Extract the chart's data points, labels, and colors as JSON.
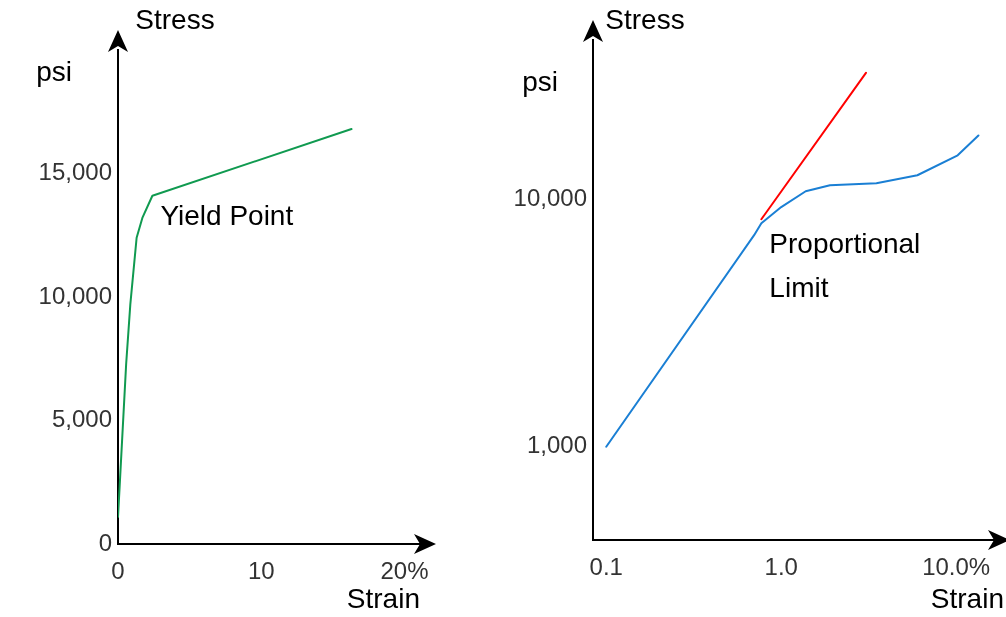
{
  "chart_data": [
    {
      "type": "line",
      "xlabel": "Strain",
      "ylabel": "Stress",
      "grid": false,
      "marker": "none",
      "line_style": "solid",
      "xlim": [
        0,
        21.5
      ],
      "xticks": [
        0,
        10,
        {
          "value": 20,
          "label": "20%"
        }
      ],
      "ylim": [
        0,
        20000
      ],
      "yticks": [
        0,
        {
          "value": 5000,
          "label": "5,000"
        },
        {
          "value": 10000,
          "label": "10,000"
        },
        {
          "value": 15000,
          "label": "15,000"
        }
      ],
      "series": [
        {
          "color": "#109a50",
          "x": [
            0,
            0.14,
            0.57,
            0.86,
            1.3,
            1.7,
            2.4,
            16.3
          ],
          "values": [
            1100,
            2600,
            7300,
            9700,
            12400,
            13200,
            14100,
            16800
          ]
        }
      ],
      "annotations": [
        "psi",
        {
          "text": "Yield Point",
          "x": 2.4,
          "y": 14100
        }
      ]
    },
    {
      "type": "line",
      "xlabel": "Strain",
      "ylabel": "Stress",
      "grid": false,
      "marker": "none",
      "line_style": "solid",
      "log": "xy",
      "xlim": [
        0.084,
        17.8
      ],
      "xticks": [
        0.1,
        {
          "value": 1,
          "label": "1.0"
        },
        {
          "value": 10,
          "label": "10.0%"
        }
      ],
      "ylim": [
        420,
        44000
      ],
      "yticks": [
        {
          "value": 1000,
          "label": "1,000"
        },
        {
          "value": 10000,
          "label": "10,000"
        }
      ],
      "series": [
        {
          "color": "#1a7fd4",
          "x": [
            0.1,
            0.7,
            0.77,
            1.0,
            1.38,
            1.9,
            3.5,
            6.0,
            10.2,
            13.4
          ],
          "values": [
            1000,
            7160,
            8000,
            9300,
            10770,
            11400,
            11600,
            12500,
            15050,
            18100
          ]
        },
        {
          "color": "#ff0000",
          "x": [
            0.77,
            3.05
          ],
          "values": [
            8300,
            32400
          ]
        }
      ],
      "annotations": [
        "psi",
        {
          "text": "Proportional Limit",
          "x": 0.77,
          "y": 8000
        }
      ]
    }
  ]
}
